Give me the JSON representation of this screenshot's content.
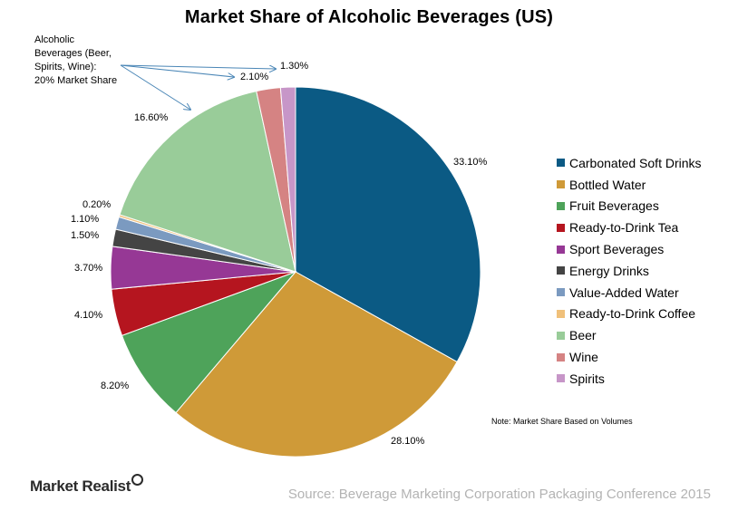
{
  "colors": {
    "carbonated": "#0b5a84",
    "bottled": "#cf9a38",
    "fruit": "#4ea35a",
    "tea": "#b5151f",
    "sport": "#963895",
    "energy": "#444444",
    "valueadded": "#7b9ac0",
    "coffee": "#f0c07a",
    "beer": "#99cc99",
    "wine": "#d58383",
    "spirits": "#c796c8",
    "source_text": "#b3b3b3",
    "arrow": "#4a86b6"
  },
  "annotation": {
    "lines": [
      "Alcoholic",
      "Beverages (Beer,",
      "Spirits, Wine):",
      "20% Market Share"
    ]
  },
  "note": "Note: Market Share Based on Volumes",
  "brand": "Market Realist",
  "source": "Source: Beverage Marketing Corporation Packaging Conference 2015",
  "chart_data": {
    "type": "pie",
    "title": "Market Share of Alcoholic  Beverages (US)",
    "legend_position": "right",
    "slices": [
      {
        "name": "Carbonated Soft Drinks",
        "value": 33.1,
        "label": "33.10%",
        "color_key": "carbonated"
      },
      {
        "name": "Bottled Water",
        "value": 28.1,
        "label": "28.10%",
        "color_key": "bottled"
      },
      {
        "name": "Fruit Beverages",
        "value": 8.2,
        "label": "8.20%",
        "color_key": "fruit"
      },
      {
        "name": "Ready-to-Drink Tea",
        "value": 4.1,
        "label": "4.10%",
        "color_key": "tea"
      },
      {
        "name": "Sport Beverages",
        "value": 3.7,
        "label": "3.70%",
        "color_key": "sport"
      },
      {
        "name": "Energy Drinks",
        "value": 1.5,
        "label": "1.50%",
        "color_key": "energy"
      },
      {
        "name": "Value-Added Water",
        "value": 1.1,
        "label": "1.10%",
        "color_key": "valueadded"
      },
      {
        "name": "Ready-to-Drink Coffee",
        "value": 0.2,
        "label": "0.20%",
        "color_key": "coffee"
      },
      {
        "name": "Beer",
        "value": 16.6,
        "label": "16.60%",
        "color_key": "beer"
      },
      {
        "name": "Wine",
        "value": 2.1,
        "label": "2.10%",
        "color_key": "wine"
      },
      {
        "name": "Spirits",
        "value": 1.3,
        "label": "1.30%",
        "color_key": "spirits"
      }
    ]
  }
}
